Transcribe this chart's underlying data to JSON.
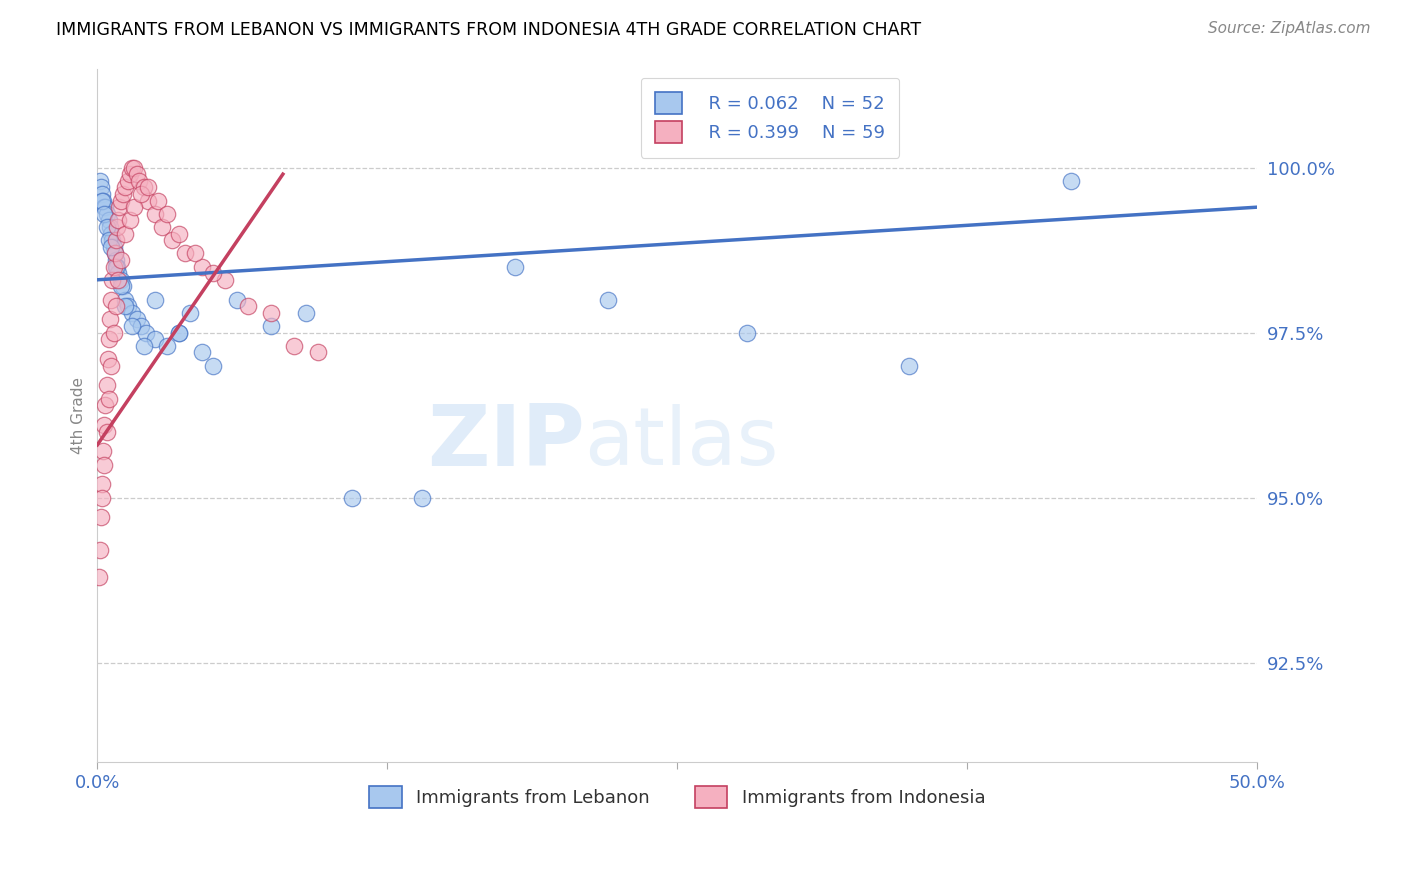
{
  "title": "IMMIGRANTS FROM LEBANON VS IMMIGRANTS FROM INDONESIA 4TH GRADE CORRELATION CHART",
  "source": "Source: ZipAtlas.com",
  "xlim": [
    0.0,
    50.0
  ],
  "ylim": [
    91.0,
    101.5
  ],
  "yticks": [
    92.5,
    95.0,
    97.5,
    100.0
  ],
  "ytick_labels": [
    "92.5%",
    "95.0%",
    "97.5%",
    "100.0%"
  ],
  "xtick_left": "0.0%",
  "xtick_right": "50.0%",
  "ylabel": "4th Grade",
  "lebanon_color": "#a8c8ee",
  "indonesia_color": "#f5b0c0",
  "trendline_lebanon_color": "#4472c4",
  "trendline_indonesia_color": "#c44060",
  "legend_R_lebanon": "R = 0.062",
  "legend_N_lebanon": "N = 52",
  "legend_R_indonesia": "R = 0.399",
  "legend_N_indonesia": "N = 59",
  "legend_label_lebanon": "Immigrants from Lebanon",
  "legend_label_indonesia": "Immigrants from Indonesia",
  "watermark": "ZIPatlas",
  "lebanon_x": [
    0.1,
    0.15,
    0.2,
    0.25,
    0.3,
    0.35,
    0.4,
    0.5,
    0.55,
    0.6,
    0.65,
    0.7,
    0.75,
    0.8,
    0.85,
    0.9,
    1.0,
    1.1,
    1.2,
    1.3,
    1.5,
    1.7,
    1.9,
    2.1,
    2.5,
    3.0,
    3.5,
    4.0,
    4.5,
    5.0,
    6.0,
    7.5,
    9.0,
    11.0,
    14.0,
    18.0,
    22.0,
    28.0,
    35.0,
    42.0,
    0.2,
    0.3,
    0.4,
    0.5,
    0.6,
    0.8,
    1.0,
    1.2,
    1.5,
    2.0,
    2.5,
    3.5
  ],
  "lebanon_y": [
    99.8,
    99.7,
    99.6,
    99.5,
    99.4,
    99.4,
    99.3,
    99.2,
    99.1,
    99.0,
    98.9,
    98.8,
    98.7,
    98.6,
    98.5,
    98.4,
    98.3,
    98.2,
    98.0,
    97.9,
    97.8,
    97.7,
    97.6,
    97.5,
    97.4,
    97.3,
    97.5,
    97.8,
    97.2,
    97.0,
    98.0,
    97.6,
    97.8,
    95.0,
    95.0,
    98.5,
    98.0,
    97.5,
    97.0,
    99.8,
    99.5,
    99.3,
    99.1,
    98.9,
    98.8,
    98.5,
    98.2,
    97.9,
    97.6,
    97.3,
    98.0,
    97.5
  ],
  "indonesia_x": [
    0.05,
    0.1,
    0.15,
    0.2,
    0.25,
    0.3,
    0.35,
    0.4,
    0.45,
    0.5,
    0.55,
    0.6,
    0.65,
    0.7,
    0.75,
    0.8,
    0.85,
    0.9,
    0.95,
    1.0,
    1.1,
    1.2,
    1.3,
    1.4,
    1.5,
    1.6,
    1.7,
    1.8,
    2.0,
    2.2,
    2.5,
    2.8,
    3.2,
    3.8,
    4.5,
    5.5,
    7.5,
    9.5,
    0.2,
    0.3,
    0.4,
    0.5,
    0.6,
    0.7,
    0.8,
    0.9,
    1.0,
    1.2,
    1.4,
    1.6,
    1.9,
    2.2,
    2.6,
    3.0,
    3.5,
    4.2,
    5.0,
    6.5,
    8.5
  ],
  "indonesia_y": [
    93.8,
    94.2,
    94.7,
    95.2,
    95.7,
    96.1,
    96.4,
    96.7,
    97.1,
    97.4,
    97.7,
    98.0,
    98.3,
    98.5,
    98.7,
    98.9,
    99.1,
    99.2,
    99.4,
    99.5,
    99.6,
    99.7,
    99.8,
    99.9,
    100.0,
    100.0,
    99.9,
    99.8,
    99.7,
    99.5,
    99.3,
    99.1,
    98.9,
    98.7,
    98.5,
    98.3,
    97.8,
    97.2,
    95.0,
    95.5,
    96.0,
    96.5,
    97.0,
    97.5,
    97.9,
    98.3,
    98.6,
    99.0,
    99.2,
    99.4,
    99.6,
    99.7,
    99.5,
    99.3,
    99.0,
    98.7,
    98.4,
    97.9,
    97.3
  ],
  "leb_trend_x0": 0.0,
  "leb_trend_y0": 98.3,
  "leb_trend_x1": 50.0,
  "leb_trend_y1": 99.4,
  "ind_trend_x0": 0.0,
  "ind_trend_y0": 95.8,
  "ind_trend_x1": 8.0,
  "ind_trend_y1": 99.9
}
